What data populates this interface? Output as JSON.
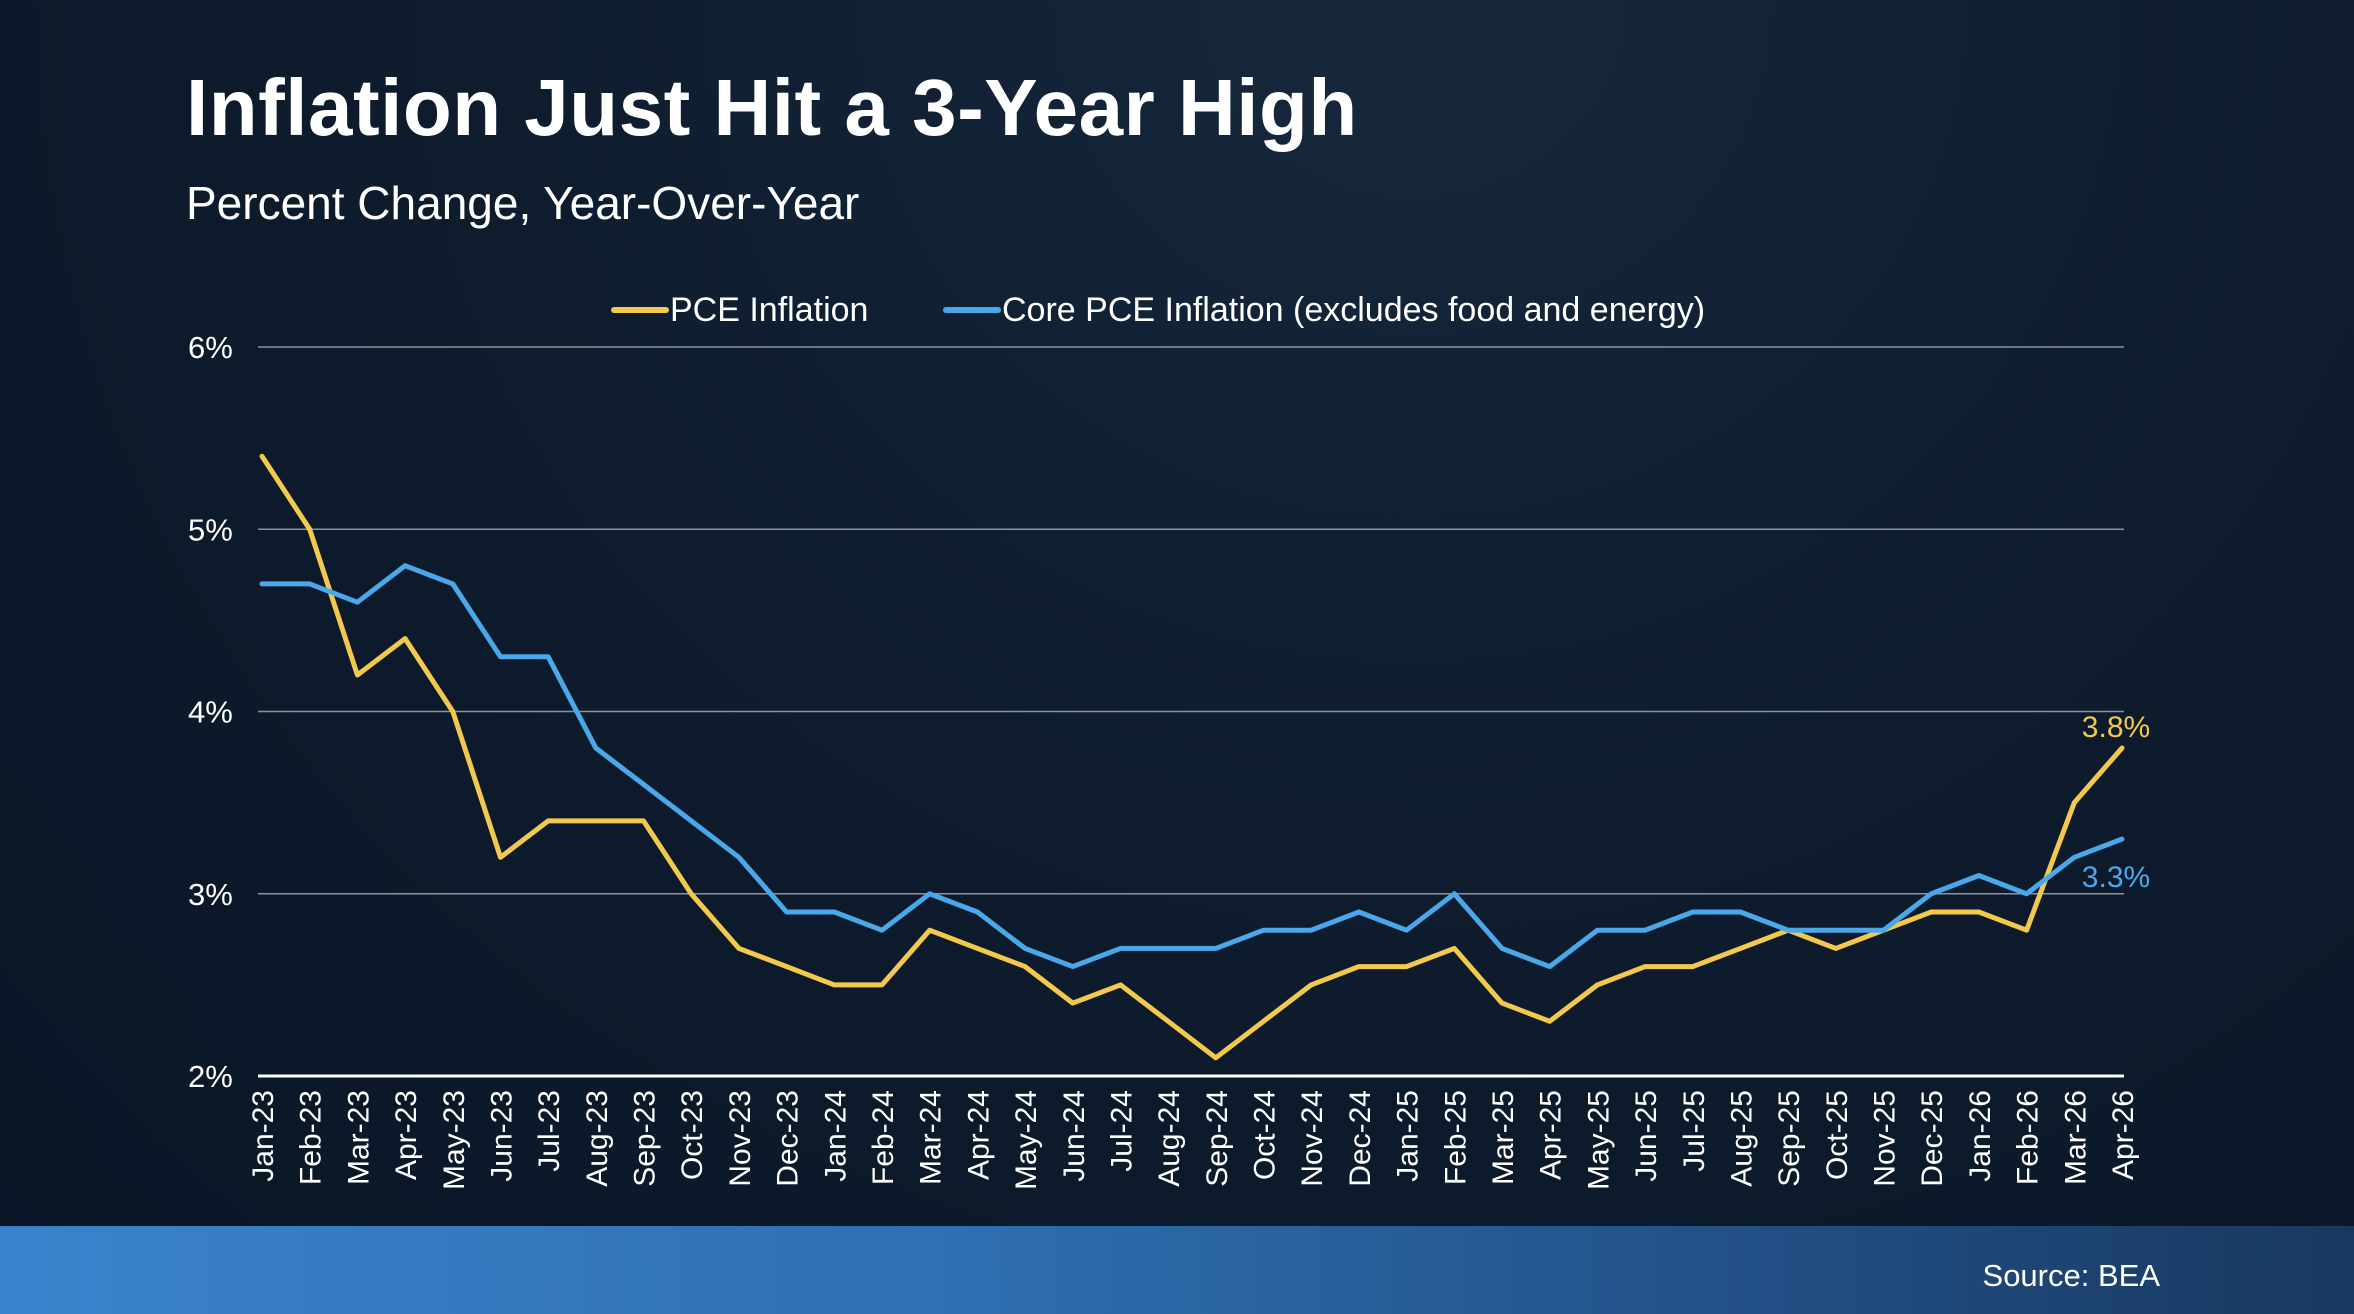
{
  "header": {
    "title": "Inflation Just Hit a 3-Year High",
    "subtitle": "Percent Change, Year-Over-Year"
  },
  "footer": {
    "source": "Source: BEA"
  },
  "colors": {
    "pce": "#f2c94c",
    "core": "#4aa8ea",
    "grid": "#8a94a0",
    "axis": "#ffffff"
  },
  "chart_data": {
    "type": "line",
    "title": "Inflation Just Hit a 3-Year High",
    "subtitle": "Percent Change, Year-Over-Year",
    "xlabel": "",
    "ylabel": "",
    "ylim": [
      2,
      6
    ],
    "yticks": [
      2,
      3,
      4,
      5,
      6
    ],
    "ytick_labels": [
      "2%",
      "3%",
      "4%",
      "5%",
      "6%"
    ],
    "grid": true,
    "legend_position": "top-center",
    "categories": [
      "Jan-23",
      "Feb-23",
      "Mar-23",
      "Apr-23",
      "May-23",
      "Jun-23",
      "Jul-23",
      "Aug-23",
      "Sep-23",
      "Oct-23",
      "Nov-23",
      "Dec-23",
      "Jan-24",
      "Feb-24",
      "Mar-24",
      "Apr-24",
      "May-24",
      "Jun-24",
      "Jul-24",
      "Aug-24",
      "Sep-24",
      "Oct-24",
      "Nov-24",
      "Dec-24",
      "Jan-25",
      "Feb-25",
      "Mar-25",
      "Apr-25",
      "May-25",
      "Jun-25",
      "Jul-25",
      "Aug-25",
      "Sep-25",
      "Oct-25",
      "Nov-25",
      "Dec-25",
      "Jan-26",
      "Feb-26",
      "Mar-26",
      "Apr-26"
    ],
    "series": [
      {
        "name": "PCE Inflation",
        "color": "#f2c94c",
        "values": [
          5.4,
          5.0,
          4.2,
          4.4,
          4.0,
          3.2,
          3.4,
          3.4,
          3.4,
          3.0,
          2.7,
          2.6,
          2.5,
          2.5,
          2.8,
          2.7,
          2.6,
          2.4,
          2.5,
          2.3,
          2.1,
          2.3,
          2.5,
          2.6,
          2.6,
          2.7,
          2.4,
          2.3,
          2.5,
          2.6,
          2.6,
          2.7,
          2.8,
          2.7,
          2.8,
          2.9,
          2.9,
          2.8,
          3.5,
          3.8
        ],
        "end_label": "3.8%"
      },
      {
        "name": "Core PCE Inflation (excludes food and energy)",
        "color": "#4aa8ea",
        "values": [
          4.7,
          4.7,
          4.6,
          4.8,
          4.7,
          4.3,
          4.3,
          3.8,
          3.6,
          3.4,
          3.2,
          2.9,
          2.9,
          2.8,
          3.0,
          2.9,
          2.7,
          2.6,
          2.7,
          2.7,
          2.7,
          2.8,
          2.8,
          2.9,
          2.8,
          3.0,
          2.7,
          2.6,
          2.8,
          2.8,
          2.9,
          2.9,
          2.8,
          2.8,
          2.8,
          3.0,
          3.1,
          3.0,
          3.2,
          3.3
        ],
        "end_label": "3.3%"
      }
    ]
  }
}
